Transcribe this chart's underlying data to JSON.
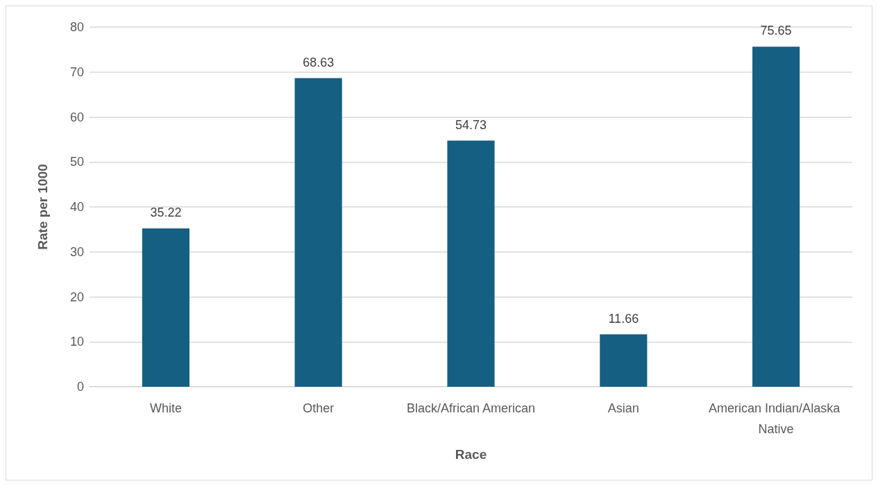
{
  "chart_data": {
    "type": "bar",
    "xlabel": "Race",
    "ylabel": "Rate per 1000",
    "categories": [
      "White",
      "Other",
      "Black/African American",
      "Asian",
      "American Indian/Alaska Native"
    ],
    "values": [
      35.22,
      68.63,
      54.73,
      11.66,
      75.65
    ],
    "color": "#155f82",
    "ylim": [
      0,
      80
    ],
    "yticks": [
      0,
      10,
      20,
      30,
      40,
      50,
      60,
      70,
      80
    ],
    "grid": "y",
    "data_labels": true
  }
}
